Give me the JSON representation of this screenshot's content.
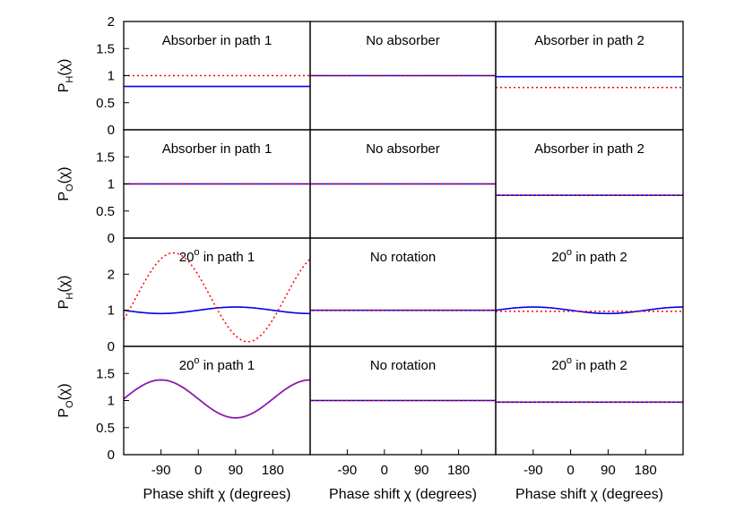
{
  "colors": {
    "solid": "#0000ee",
    "dotted": "#ff0000",
    "overlap": "#8a1ab0",
    "frame": "#000000"
  },
  "chart_data": [
    {
      "type": "line",
      "row": 0,
      "col": 0,
      "title": "Absorber in path 1",
      "ylabel": {
        "base": "P",
        "sub": "H",
        "arg": "(χ)"
      },
      "xlim": [
        -180,
        270
      ],
      "ylim": [
        0,
        2
      ],
      "yticks": [
        "0",
        "0.5",
        "1",
        "1.5",
        "2"
      ],
      "series": [
        {
          "style": "solid",
          "func": "const",
          "c": 0.8
        },
        {
          "style": "dotted",
          "func": "const",
          "c": 1.0
        }
      ]
    },
    {
      "type": "line",
      "row": 0,
      "col": 1,
      "title": "No absorber",
      "xlim": [
        -180,
        270
      ],
      "ylim": [
        0,
        2
      ],
      "series": [
        {
          "style": "solid",
          "func": "const",
          "c": 1.0
        },
        {
          "style": "dotted",
          "func": "const",
          "c": 1.0
        }
      ]
    },
    {
      "type": "line",
      "row": 0,
      "col": 2,
      "title": "Absorber in path 2",
      "xlim": [
        -180,
        270
      ],
      "ylim": [
        0,
        2
      ],
      "series": [
        {
          "style": "solid",
          "func": "const",
          "c": 0.98
        },
        {
          "style": "dotted",
          "func": "const",
          "c": 0.78
        }
      ]
    },
    {
      "type": "line",
      "row": 1,
      "col": 0,
      "title": "Absorber in path 1",
      "ylabel": {
        "base": "P",
        "sub": "O",
        "arg": "(χ)"
      },
      "xlim": [
        -180,
        270
      ],
      "ylim": [
        0,
        2
      ],
      "yticks": [
        "0",
        "0.5",
        "1",
        "1.5",
        ""
      ],
      "series": [
        {
          "style": "solid",
          "func": "const",
          "c": 1.0
        },
        {
          "style": "dotted",
          "func": "const",
          "c": 1.0
        }
      ]
    },
    {
      "type": "line",
      "row": 1,
      "col": 1,
      "title": "No absorber",
      "xlim": [
        -180,
        270
      ],
      "ylim": [
        0,
        2
      ],
      "series": [
        {
          "style": "solid",
          "func": "const",
          "c": 1.0
        },
        {
          "style": "dotted",
          "func": "const",
          "c": 1.0
        }
      ]
    },
    {
      "type": "line",
      "row": 1,
      "col": 2,
      "title": "Absorber in path 2",
      "xlim": [
        -180,
        270
      ],
      "ylim": [
        0,
        2
      ],
      "series": [
        {
          "style": "solid",
          "func": "const",
          "c": 0.79
        },
        {
          "style": "dotted",
          "func": "const",
          "c": 0.79
        }
      ]
    },
    {
      "type": "line",
      "row": 2,
      "col": 0,
      "title": {
        "base": "20",
        "sup": "o",
        "rest": " in path 1"
      },
      "ylabel": {
        "base": "P",
        "sub": "H",
        "arg": "(χ)"
      },
      "xlim": [
        -180,
        270
      ],
      "ylim": [
        0,
        3
      ],
      "yticks": [
        "0",
        "1",
        "2",
        ""
      ],
      "series": [
        {
          "style": "solid",
          "func": "sin",
          "a": 1.0,
          "b": 0.09,
          "phase": 0
        },
        {
          "style": "dotted",
          "func": "sin",
          "a": 1.36,
          "b": 1.23,
          "phase": 150
        }
      ]
    },
    {
      "type": "line",
      "row": 2,
      "col": 1,
      "title": "No rotation",
      "xlim": [
        -180,
        270
      ],
      "ylim": [
        0,
        3
      ],
      "series": [
        {
          "style": "solid",
          "func": "const",
          "c": 1.0
        },
        {
          "style": "dotted",
          "func": "const",
          "c": 1.0
        }
      ]
    },
    {
      "type": "line",
      "row": 2,
      "col": 2,
      "title": {
        "base": "20",
        "sup": "o",
        "rest": " in path 2"
      },
      "xlim": [
        -180,
        270
      ],
      "ylim": [
        0,
        3
      ],
      "series": [
        {
          "style": "solid",
          "func": "sin",
          "a": 1.0,
          "b": -0.09,
          "phase": 0
        },
        {
          "style": "dotted",
          "func": "const",
          "c": 0.97
        }
      ]
    },
    {
      "type": "line",
      "row": 3,
      "col": 0,
      "title": {
        "base": "20",
        "sup": "o",
        "rest": " in path 1"
      },
      "ylabel": {
        "base": "P",
        "sub": "O",
        "arg": "(χ)"
      },
      "xlabel": "Phase shift χ (degrees)",
      "xlim": [
        -180,
        270
      ],
      "ylim": [
        0,
        2
      ],
      "yticks": [
        "0",
        "0.5",
        "1",
        "1.5",
        ""
      ],
      "xticks": [
        -90,
        0,
        90,
        180
      ],
      "xtick_labels": [
        "-90",
        "0",
        "90",
        "180"
      ],
      "series": [
        {
          "style": "overlap",
          "func": "sin",
          "a": 1.03,
          "b": -0.35,
          "phase": 0
        }
      ]
    },
    {
      "type": "line",
      "row": 3,
      "col": 1,
      "title": "No rotation",
      "xlabel": "Phase shift χ (degrees)",
      "xlim": [
        -180,
        270
      ],
      "ylim": [
        0,
        2
      ],
      "xticks": [
        -90,
        0,
        90,
        180
      ],
      "xtick_labels": [
        "-90",
        "0",
        "90",
        "180"
      ],
      "series": [
        {
          "style": "solid",
          "func": "const",
          "c": 1.0
        },
        {
          "style": "dotted",
          "func": "const",
          "c": 1.0
        }
      ]
    },
    {
      "type": "line",
      "row": 3,
      "col": 2,
      "title": {
        "base": "20",
        "sup": "o",
        "rest": " in path 2"
      },
      "xlabel": "Phase shift χ (degrees)",
      "xlim": [
        -180,
        270
      ],
      "ylim": [
        0,
        2
      ],
      "xticks": [
        -90,
        0,
        90,
        180
      ],
      "xtick_labels": [
        "-90",
        "0",
        "90",
        "180"
      ],
      "series": [
        {
          "style": "solid",
          "func": "const",
          "c": 0.97
        },
        {
          "style": "dotted",
          "func": "const",
          "c": 0.97
        }
      ]
    }
  ]
}
